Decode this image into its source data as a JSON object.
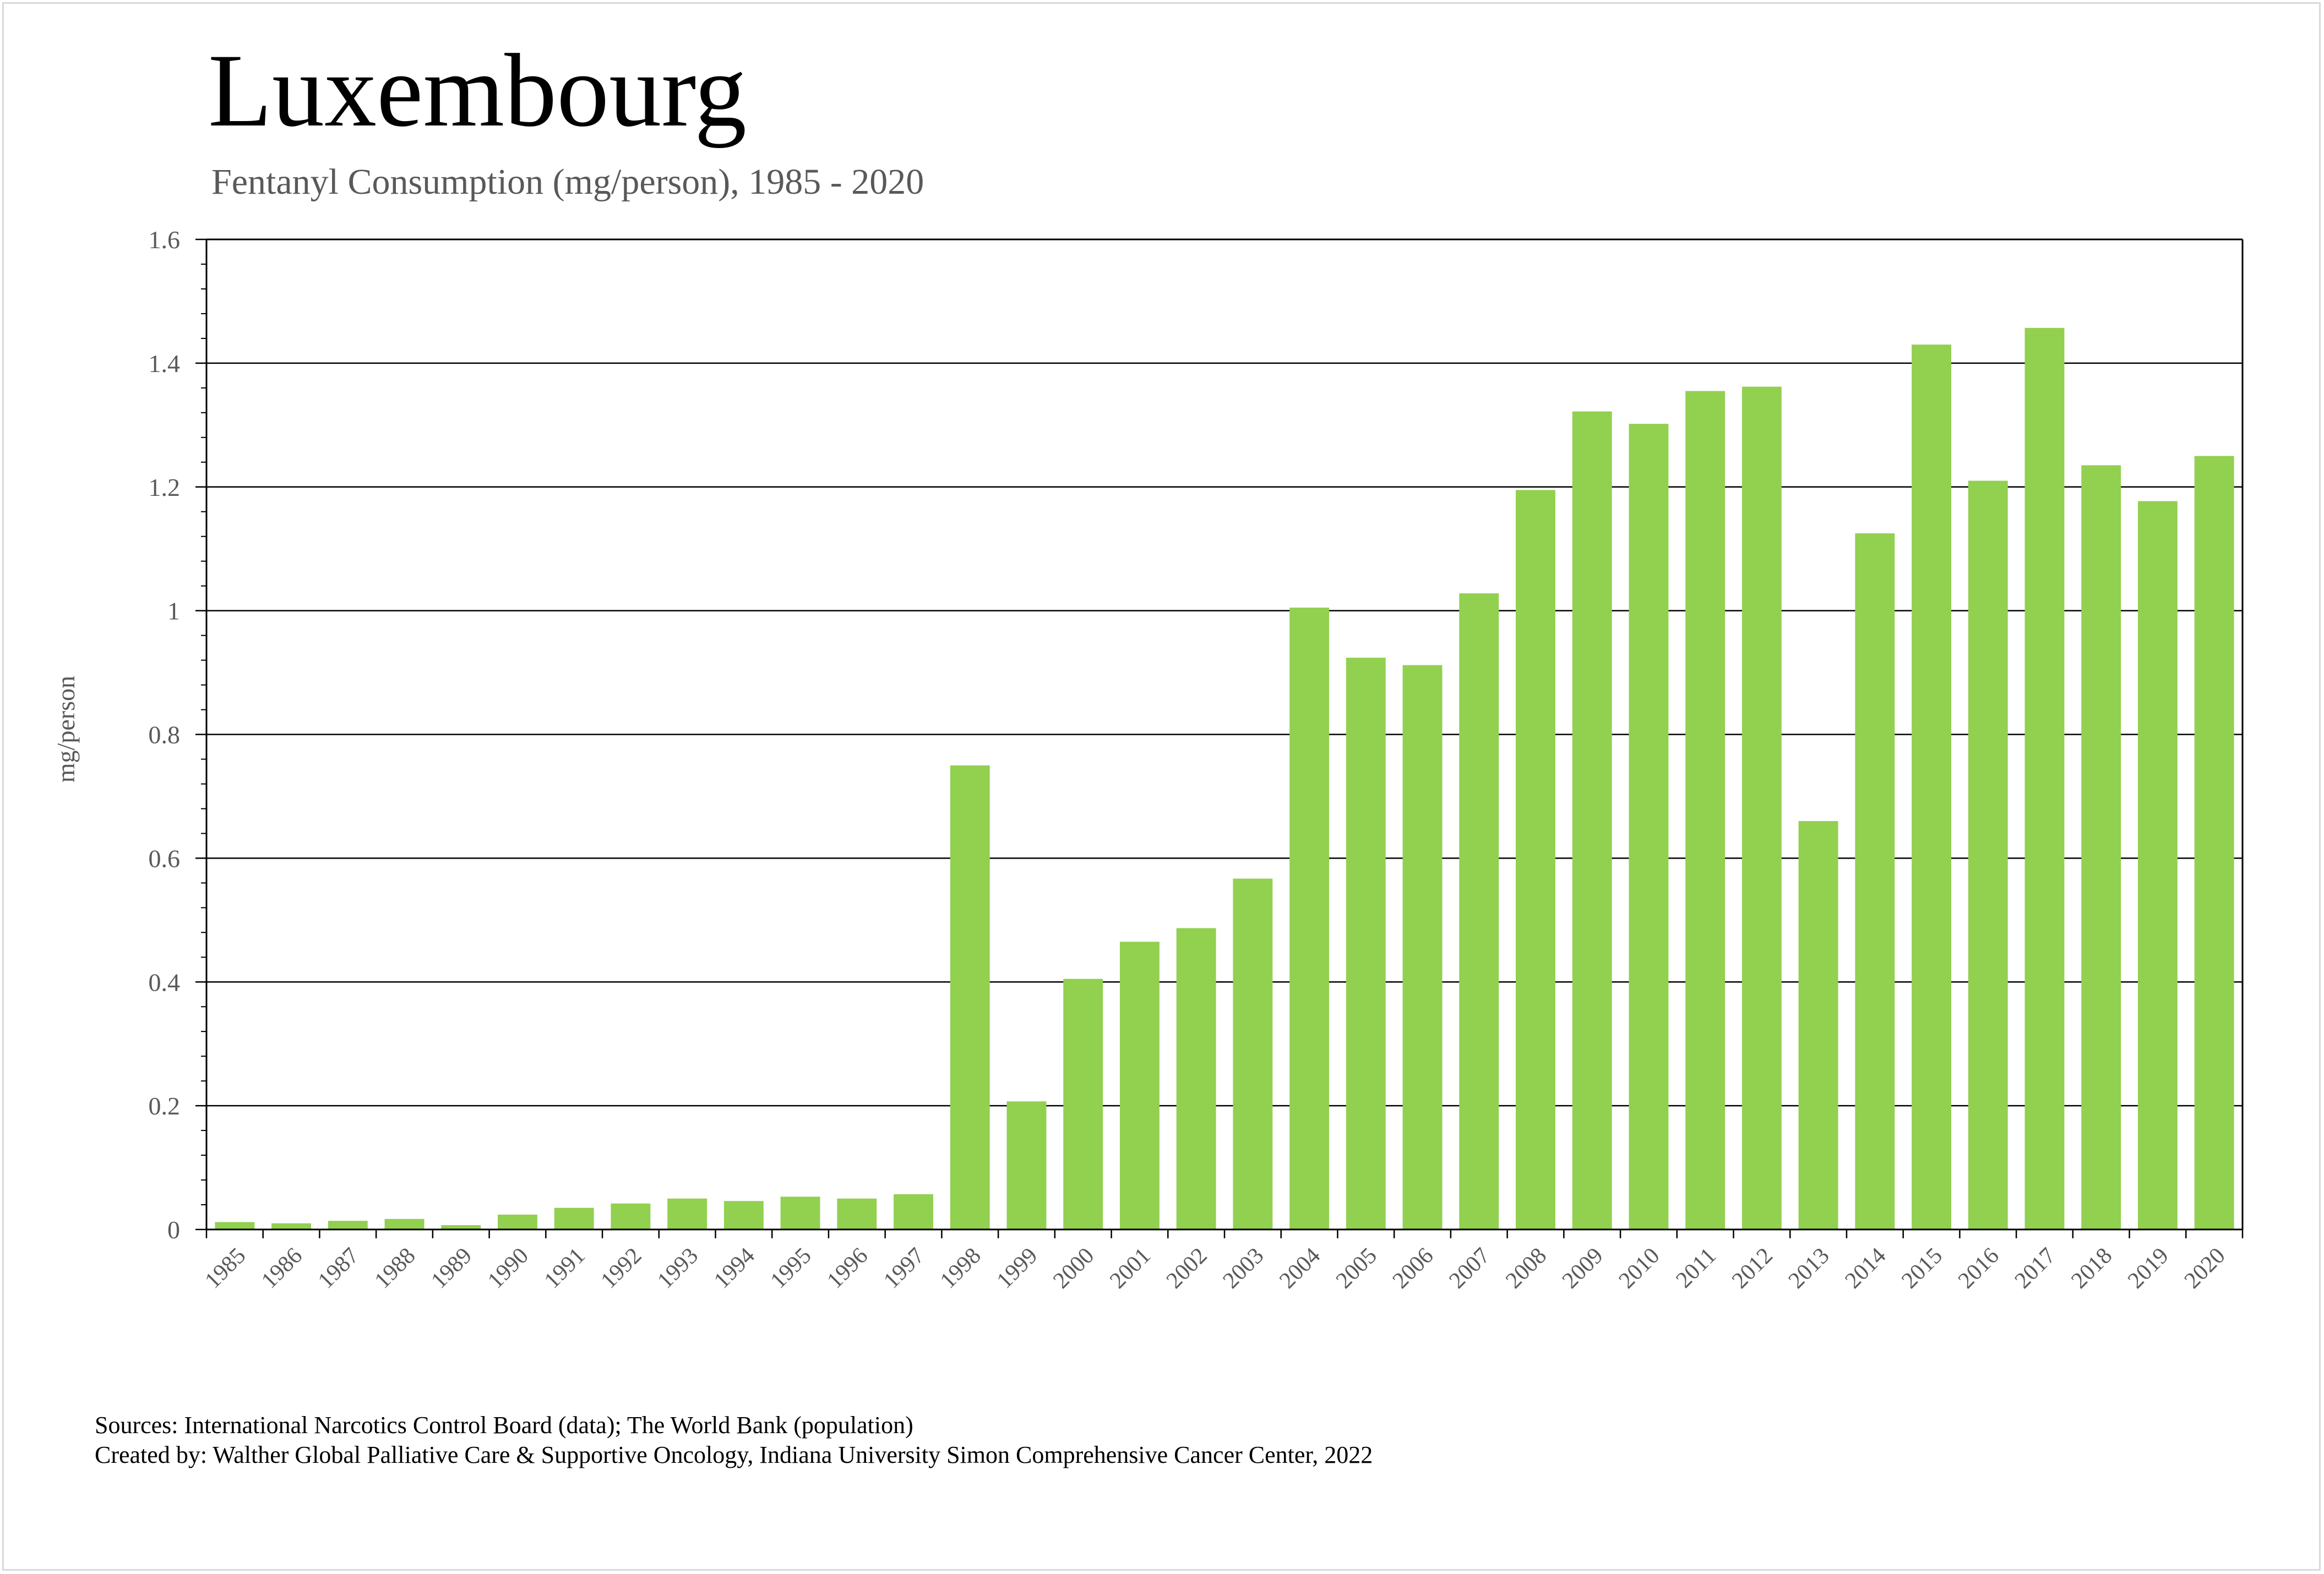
{
  "title": "Luxembourg",
  "subtitle": "Fentanyl Consumption (mg/person), 1985 - 2020",
  "sources_line": "Sources: International Narcotics Control Board (data); The World Bank (population)",
  "created_line": "Created by: Walther Global Palliative Care & Supportive Oncology, Indiana University Simon Comprehensive Cancer Center, 2022",
  "colors": {
    "bar": "#92d050",
    "grid": "#000000",
    "axis_text": "#595959"
  },
  "chart_data": {
    "type": "bar",
    "title": "Luxembourg",
    "subtitle": "Fentanyl Consumption (mg/person), 1985 - 2020",
    "xlabel": "",
    "ylabel": "mg/person",
    "ylim": [
      0,
      1.6
    ],
    "yticks": [
      "0",
      "0.2",
      "0.4",
      "0.6",
      "0.8",
      "1",
      "1.2",
      "1.4",
      "1.6"
    ],
    "grid": true,
    "legend": "none",
    "categories": [
      "1985",
      "1986",
      "1987",
      "1988",
      "1989",
      "1990",
      "1991",
      "1992",
      "1993",
      "1994",
      "1995",
      "1996",
      "1997",
      "1998",
      "1999",
      "2000",
      "2001",
      "2002",
      "2003",
      "2004",
      "2005",
      "2006",
      "2007",
      "2008",
      "2009",
      "2010",
      "2011",
      "2012",
      "2013",
      "2014",
      "2015",
      "2016",
      "2017",
      "2018",
      "2019",
      "2020"
    ],
    "values": [
      0.012,
      0.01,
      0.014,
      0.017,
      0.007,
      0.024,
      0.035,
      0.042,
      0.05,
      0.046,
      0.053,
      0.05,
      0.057,
      0.75,
      0.207,
      0.405,
      0.465,
      0.487,
      0.567,
      1.005,
      0.924,
      0.912,
      1.028,
      1.195,
      1.322,
      1.302,
      1.355,
      1.362,
      0.66,
      1.125,
      1.43,
      1.21,
      1.457,
      1.235,
      1.177,
      1.25
    ]
  }
}
